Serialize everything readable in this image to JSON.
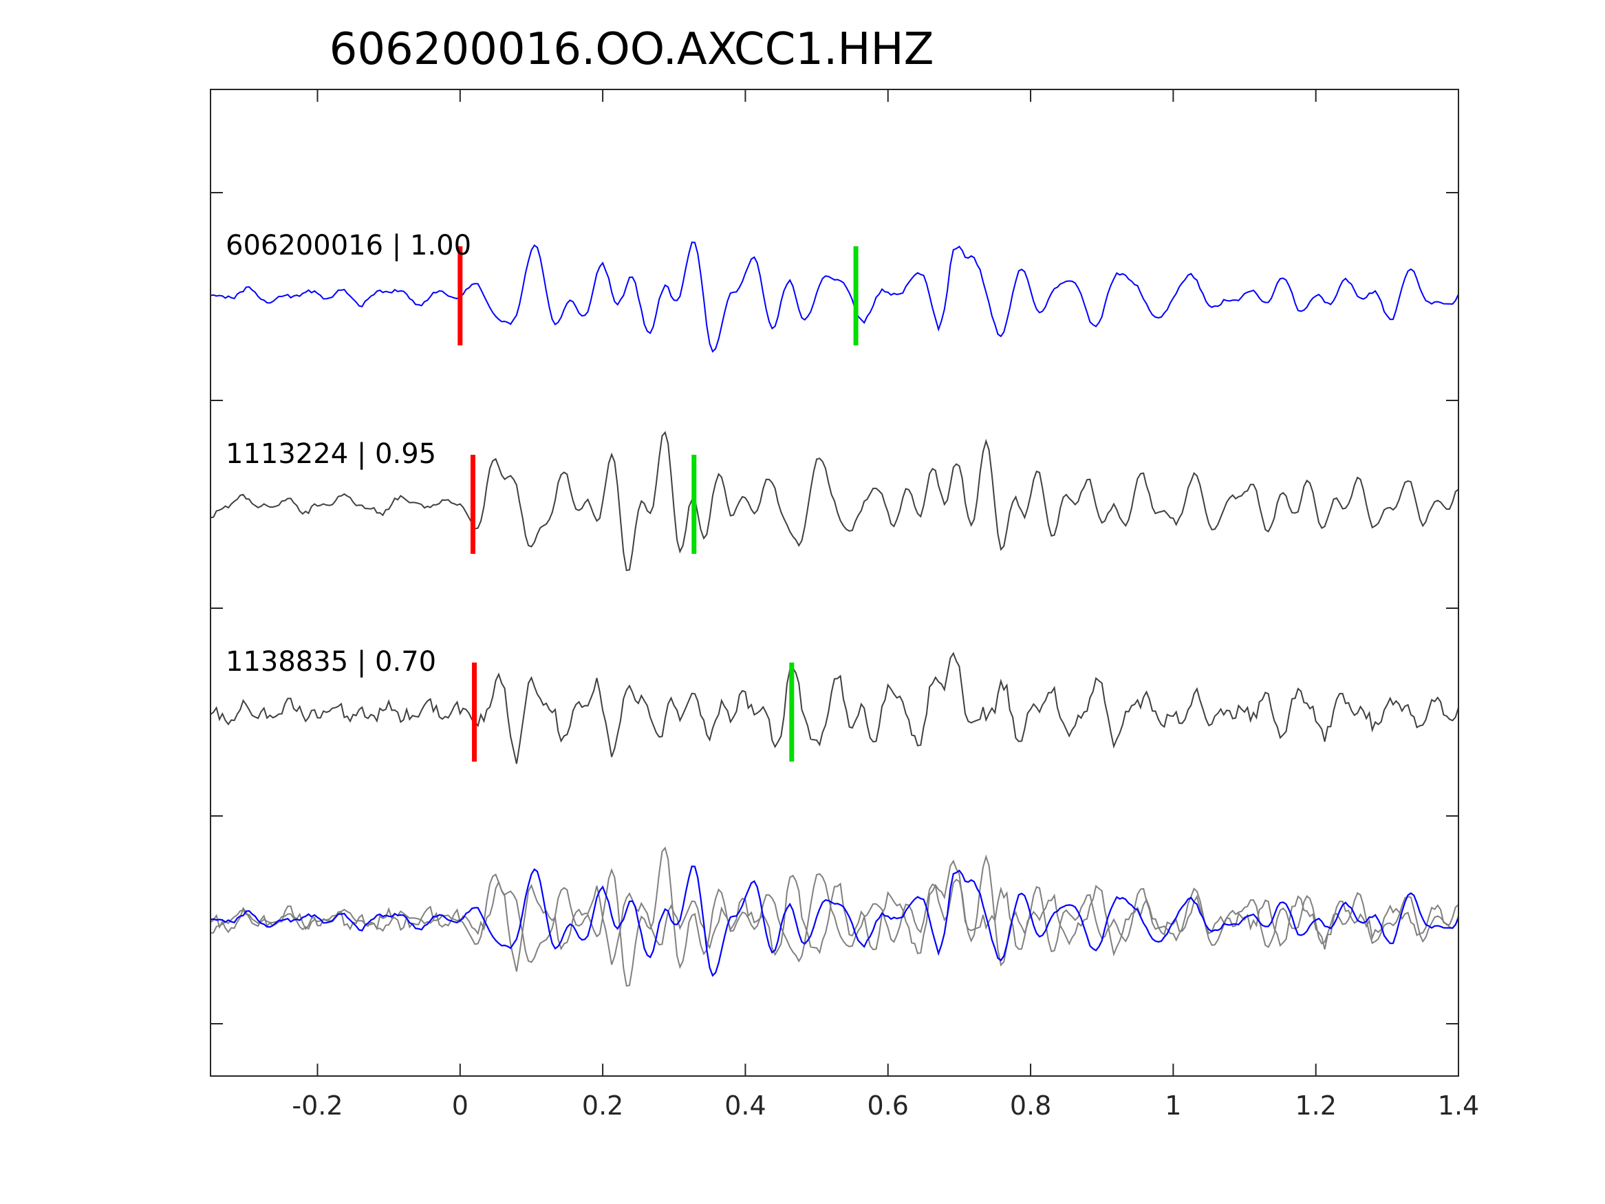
{
  "chart_data": {
    "type": "line",
    "title": "606200016.OO.AXCC1.HHZ",
    "xlabel": "",
    "ylabel": "",
    "xlim": [
      -0.35,
      1.4
    ],
    "x_ticks": [
      -0.2,
      0,
      0.2,
      0.4,
      0.6,
      0.8,
      1,
      1.2,
      1.4
    ],
    "x_tick_labels": [
      "-0.2",
      "0",
      "0.2",
      "0.4",
      "0.6",
      "0.8",
      "1",
      "1.2",
      "1.4"
    ],
    "grid": false,
    "legend": "none",
    "colors": {
      "reference": "#0000ff",
      "other": "#404040",
      "overlay_other": "#808080",
      "p_pick": "#ff0000",
      "s_pick": "#00dd00"
    },
    "traces": [
      {
        "id": "606200016",
        "score": "1.00",
        "label": "606200016 | 1.00",
        "color": "#0000ff",
        "p_pick": 0.0,
        "s_pick": 0.555,
        "seed": 11
      },
      {
        "id": "1113224",
        "score": "0.95",
        "label": "1113224 | 0.95",
        "color": "#404040",
        "p_pick": 0.018,
        "s_pick": 0.328,
        "seed": 29
      },
      {
        "id": "1138835",
        "score": "0.70",
        "label": "1138835 | 0.70",
        "color": "#404040",
        "p_pick": 0.02,
        "s_pick": 0.465,
        "seed": 47
      }
    ],
    "overlay": {
      "description_hidden": true,
      "reference_color": "#0000ff",
      "others_color": "#808080"
    }
  }
}
